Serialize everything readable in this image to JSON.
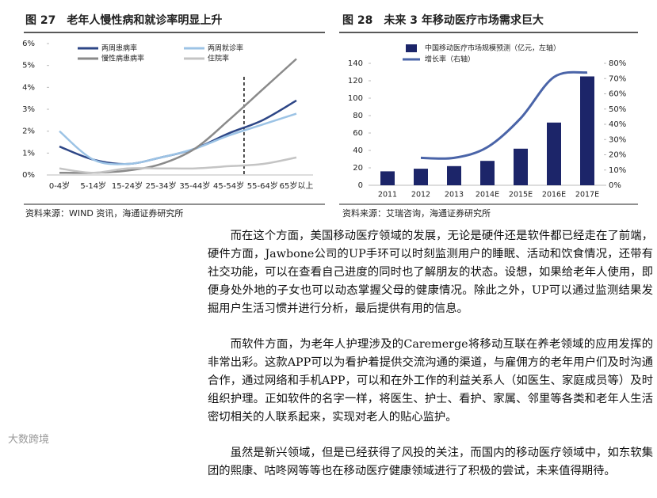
{
  "document": {
    "sources": [
      "资料来源：WIND 资讯，海通证券研究所",
      "资料来源：艾瑞咨询，海通证券研究所"
    ],
    "paragraphs": [
      "而在这个方面，美国移动医疗领域的发展，无论是硬件还是软件都已经走在了前端，硬件方面，Jawbone公司的UP手环可以时刻监测用户的睡眠、活动和饮食情况，还带有社交功能，可以在查看自己进度的同时也了解朋友的状态。设想，如果给老年人使用，即便身处外地的子女也可以动态掌握父母的健康情况。除此之外，UP可以通过监测结果发掘用户生活习惯并进行分析，最后提供有用的信息。",
      "而软件方面，为老年人护理涉及的Caremerge将移动互联在养老领域的应用发挥的非常出彩。这款APP可以为看护着提供交流沟通的渠道，与雇佣方的老年用户们及时沟通合作，通过网络和手机APP，可以和在外工作的利益关系人（如医生、家庭成员等）及时组织护理。正如软件的名字一样，将医生、护士、看护、家属、邻里等各类和老年人生活密切相关的人联系起来，实现对老人的贴心监护。",
      "虽然是新兴领域，但是已经获得了风投的关注，而国内的移动医疗领域中，如东软集团的熙康、咕咚网等等也在移动医疗健康领域进行了积极的尝试，未来值得期待。"
    ],
    "watermark": "大数跨境"
  },
  "chart_data": [
    {
      "type": "line",
      "title": "图 27　老年人慢性病和就诊率明显上升",
      "categories": [
        "0-4岁",
        "5-14岁",
        "15-24岁",
        "25-34岁",
        "35-44岁",
        "45-54岁",
        "55-64岁",
        "65岁以上"
      ],
      "ylim": [
        0,
        6
      ],
      "yticks": [
        {
          "value": 0,
          "label": "0%"
        },
        {
          "value": 1,
          "label": "1%"
        },
        {
          "value": 2,
          "label": "2%"
        },
        {
          "value": 3,
          "label": "3%"
        },
        {
          "value": 4,
          "label": "4%"
        },
        {
          "value": 5,
          "label": "5%"
        },
        {
          "value": 6,
          "label": "6%"
        }
      ],
      "series": [
        {
          "name": "两周患病率",
          "color": "#2d4686",
          "values": [
            1.3,
            0.7,
            0.5,
            0.8,
            1.2,
            1.9,
            2.5,
            3.4
          ]
        },
        {
          "name": "两周就诊率",
          "color": "#9cc3e5",
          "values": [
            2.0,
            0.7,
            0.5,
            0.8,
            1.2,
            1.8,
            2.3,
            2.8
          ]
        },
        {
          "name": "慢性病患病率",
          "color": "#8a8a8a",
          "values": [
            0.1,
            0.1,
            0.2,
            0.5,
            1.2,
            2.5,
            3.9,
            5.3
          ]
        },
        {
          "name": "住院率",
          "color": "#c4c4c4",
          "values": [
            0.3,
            0.1,
            0.3,
            0.3,
            0.3,
            0.4,
            0.5,
            0.8
          ]
        }
      ]
    },
    {
      "type": "bar",
      "title": "图 28　未来 3 年移动医疗市场需求巨大",
      "categories": [
        "2011",
        "2012",
        "2013",
        "2014E",
        "2015E",
        "2016E",
        "2017E"
      ],
      "ylim": [
        0,
        140
      ],
      "yticks": [
        0,
        20,
        40,
        60,
        80,
        100,
        120,
        140
      ],
      "y2lim": [
        0,
        80
      ],
      "y2ticks": [
        {
          "value": 0,
          "label": "0%"
        },
        {
          "value": 10,
          "label": "10%"
        },
        {
          "value": 20,
          "label": "20%"
        },
        {
          "value": 30,
          "label": "30%"
        },
        {
          "value": 40,
          "label": "40%"
        },
        {
          "value": 50,
          "label": "50%"
        },
        {
          "value": 60,
          "label": "60%"
        },
        {
          "value": 70,
          "label": "70%"
        },
        {
          "value": 80,
          "label": "80%"
        }
      ],
      "series": [
        {
          "name": "中国移动医疗市场规模预测（亿元，左轴）",
          "color": "#1c2569",
          "values": [
            16,
            19,
            22,
            28,
            42,
            72,
            125
          ]
        },
        {
          "name": "增长率（右轴）",
          "color": "#4a64a8",
          "type": "line",
          "axis": "y2",
          "values": [
            null,
            18,
            18,
            25,
            44,
            71,
            74
          ]
        }
      ]
    }
  ]
}
